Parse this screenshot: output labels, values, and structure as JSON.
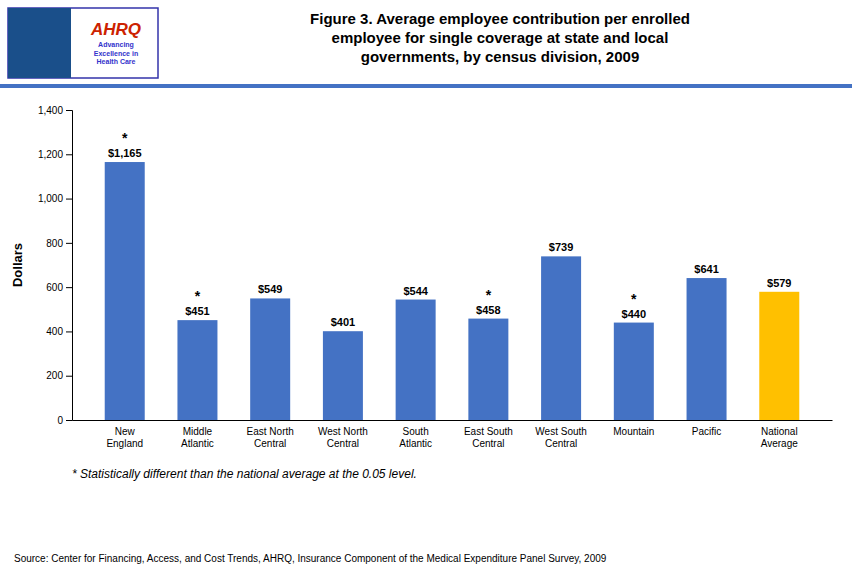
{
  "chart_data": {
    "type": "bar",
    "title": "Figure 3. Average employee contribution per enrolled\nemployee for single coverage at state and local\ngovernments, by census division, 2009",
    "ylabel": "Dollars",
    "categories": [
      "New\nEngland",
      "Middle\nAtlantic",
      "East North\nCentral",
      "West North\nCentral",
      "South\nAtlantic",
      "East South\nCentral",
      "West South\nCentral",
      "Mountain",
      "Pacific",
      "National\nAverage"
    ],
    "values": [
      1165,
      451,
      549,
      401,
      544,
      458,
      739,
      440,
      641,
      579
    ],
    "value_labels": [
      "$1,165",
      "$451",
      "$549",
      "$401",
      "$544",
      "$458",
      "$739",
      "$440",
      "$641",
      "$579"
    ],
    "data_labels": true,
    "colors": [
      "#4472c4",
      "#4472c4",
      "#4472c4",
      "#4472c4",
      "#4472c4",
      "#4472c4",
      "#4472c4",
      "#4472c4",
      "#4472c4",
      "#ffc000"
    ],
    "ylim": [
      0,
      1400
    ],
    "yticks": [
      0,
      200,
      400,
      600,
      800,
      {
        "value": 1000,
        "label": "1,000"
      },
      {
        "value": 1200,
        "label": "1,200"
      },
      {
        "value": 1400,
        "label": "1,400"
      }
    ],
    "grid": false,
    "annotations": [
      {
        "x": "New\nEngland",
        "text": "*"
      },
      {
        "x": "Middle\nAtlantic",
        "text": "*"
      },
      {
        "x": "East South\nCentral",
        "text": "*"
      },
      {
        "x": "Mountain",
        "text": "*"
      }
    ],
    "footnote": "* Statistically different than the national average at the 0.05 level.",
    "source": "Source: Center for Financing, Access, and Cost Trends, AHRQ, Insurance Component of the Medical Expenditure Panel Survey, 2009",
    "logo": [
      "AHRQ",
      "Advancing\nExcellence in\nHealth Care"
    ]
  }
}
